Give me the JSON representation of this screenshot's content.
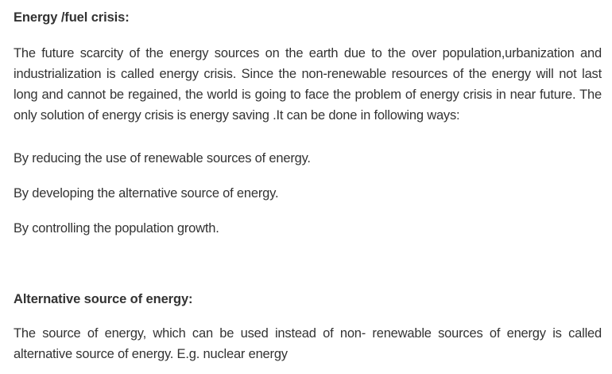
{
  "section1": {
    "heading": "Energy /fuel crisis:",
    "paragraph": "The future scarcity of the energy sources on the earth due to the over population,urbanization and industrialization is called energy crisis. Since the non-renewable resources of the energy will not last long and cannot be regained, the world is going to face the problem of energy crisis in near future. The only solution of energy crisis is energy saving .It can be done in following ways:",
    "ways": [
      "By reducing the use of renewable sources of energy.",
      "By developing the alternative source of energy.",
      "By controlling the population growth."
    ]
  },
  "section2": {
    "heading": "Alternative source of energy:",
    "paragraph": "The source of energy, which can be used instead of non- renewable sources of energy is called alternative source of energy. E.g. nuclear energy"
  }
}
